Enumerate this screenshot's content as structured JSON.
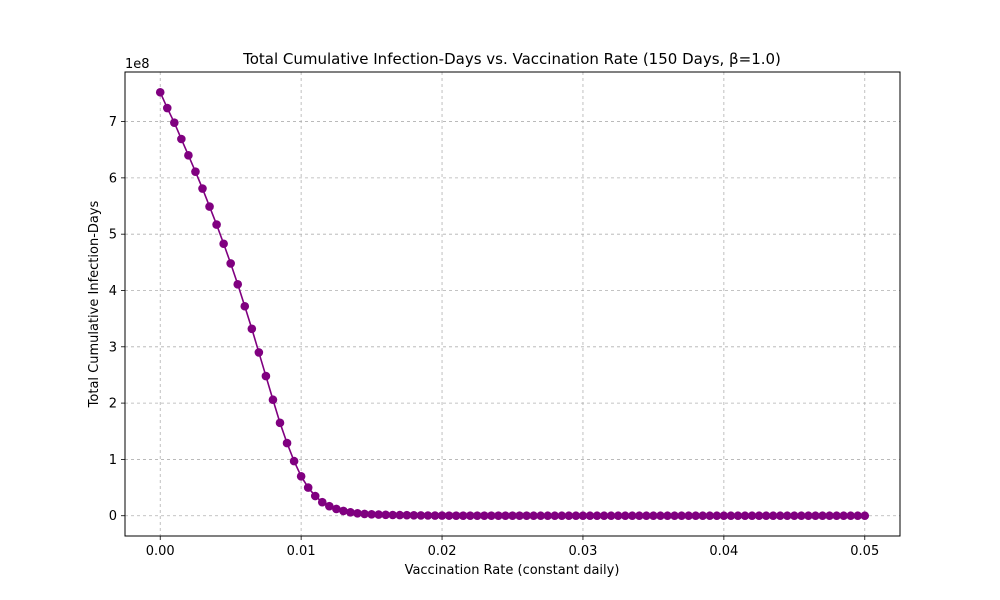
{
  "chart_data": {
    "type": "line",
    "title": "Total Cumulative Infection-Days vs. Vaccination Rate (150 Days, β=1.0)",
    "xlabel": "Vaccination Rate (constant daily)",
    "ylabel": "Total Cumulative Infection-Days",
    "y_offset_label": "1e8",
    "xlim": [
      -0.0025,
      0.0525
    ],
    "ylim": [
      -36000000.0,
      788000000.0
    ],
    "x_ticks": [
      0.0,
      0.01,
      0.02,
      0.03,
      0.04,
      0.05
    ],
    "x_tick_labels": [
      "0.00",
      "0.01",
      "0.02",
      "0.03",
      "0.04",
      "0.05"
    ],
    "y_ticks": [
      0,
      100000000,
      200000000,
      300000000,
      400000000,
      500000000,
      600000000,
      700000000
    ],
    "y_tick_labels": [
      "0",
      "1",
      "2",
      "3",
      "4",
      "5",
      "6",
      "7"
    ],
    "grid": true,
    "grid_style": "dashed",
    "color": "#800080",
    "marker": "circle",
    "series": [
      {
        "x": [
          0.0,
          0.0005,
          0.001,
          0.0015,
          0.002,
          0.0025,
          0.003,
          0.0035,
          0.004,
          0.0045,
          0.005,
          0.0055,
          0.006,
          0.0065,
          0.007,
          0.0075,
          0.008,
          0.0085,
          0.009,
          0.0095,
          0.01,
          0.0105,
          0.011,
          0.0115,
          0.012,
          0.0125,
          0.013,
          0.0135,
          0.014,
          0.0145,
          0.015,
          0.0155,
          0.016,
          0.0165,
          0.017,
          0.0175,
          0.018,
          0.0185,
          0.019,
          0.0195,
          0.02,
          0.0205,
          0.021,
          0.0215,
          0.022,
          0.0225,
          0.023,
          0.0235,
          0.024,
          0.0245,
          0.025,
          0.0255,
          0.026,
          0.0265,
          0.027,
          0.0275,
          0.028,
          0.0285,
          0.029,
          0.0295,
          0.03,
          0.0305,
          0.031,
          0.0315,
          0.032,
          0.0325,
          0.033,
          0.0335,
          0.034,
          0.0345,
          0.035,
          0.0355,
          0.036,
          0.0365,
          0.037,
          0.0375,
          0.038,
          0.0385,
          0.039,
          0.0395,
          0.04,
          0.0405,
          0.041,
          0.0415,
          0.042,
          0.0425,
          0.043,
          0.0435,
          0.044,
          0.0445,
          0.045,
          0.0455,
          0.046,
          0.0465,
          0.047,
          0.0475,
          0.048,
          0.0485,
          0.049,
          0.0495,
          0.05
        ],
        "y": [
          752000000,
          724000000,
          698000000,
          669000000,
          640000000,
          611000000,
          581000000,
          549000000,
          517000000,
          483000000,
          448000000,
          411000000,
          372000000,
          332000000,
          290000000,
          248000000,
          206000000,
          165000000,
          129000000,
          97000000,
          70000000,
          50000000,
          35000000,
          24000000,
          17000000,
          12000000,
          8500000,
          6000000,
          4300000,
          3200000,
          2500000,
          2000000,
          1600000,
          1300000,
          1100000,
          900000,
          700000,
          550000,
          400000,
          300000,
          220000,
          160000,
          120000,
          90000,
          70000,
          50000,
          40000,
          30000,
          20000,
          15000,
          10000,
          8000,
          6000,
          5000,
          4000,
          3000,
          2000,
          1500,
          1000,
          800,
          600,
          500,
          400,
          300,
          200,
          150,
          100,
          80,
          60,
          50,
          40,
          30,
          20,
          15,
          10,
          8,
          6,
          5,
          4,
          3,
          2,
          1,
          1,
          1,
          0,
          0,
          0,
          0,
          0,
          0,
          0,
          0,
          0,
          0,
          0,
          0,
          0,
          0,
          0,
          0,
          0
        ]
      }
    ]
  }
}
